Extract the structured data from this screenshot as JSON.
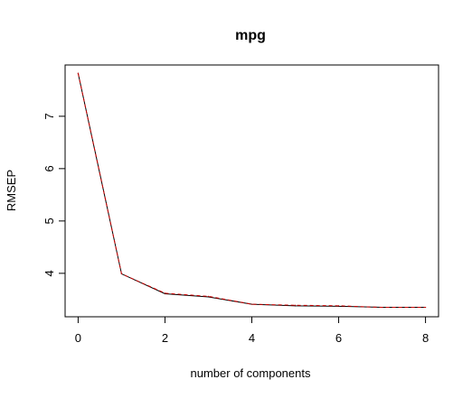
{
  "chart_data": {
    "type": "line",
    "title": "mpg",
    "xlabel": "number of components",
    "ylabel": "RMSEP",
    "x": [
      0,
      1,
      2,
      3,
      4,
      5,
      6,
      7,
      8
    ],
    "xlim": [
      -0.3,
      8.3
    ],
    "ylim": [
      3.17,
      7.98
    ],
    "xticks": [
      "0",
      "2",
      "4",
      "6",
      "8"
    ],
    "yticks": [
      "4",
      "5",
      "6",
      "7"
    ],
    "series": [
      {
        "values": [
          7.82,
          3.99,
          3.61,
          3.55,
          3.41,
          3.38,
          3.37,
          3.35,
          3.35
        ],
        "color": "#000000",
        "style": "solid"
      },
      {
        "values": [
          7.82,
          3.99,
          3.62,
          3.56,
          3.41,
          3.39,
          3.38,
          3.35,
          3.35
        ],
        "color": "#cc0000",
        "style": "dashed"
      }
    ],
    "grid": false,
    "legend": "none"
  }
}
